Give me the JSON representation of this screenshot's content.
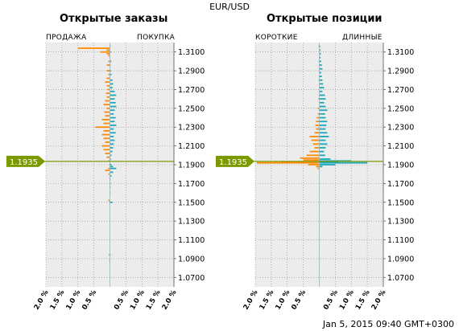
{
  "header": {
    "title": "EUR/USD"
  },
  "footer": {
    "timestamp": "Jan 5, 2015 09:40 GMT+0300"
  },
  "current_price": {
    "label": "1.1935",
    "value": 1.1935,
    "color": "#7a9a00"
  },
  "colors": {
    "sell": "#ff8a00",
    "buy": "#1aa9b9",
    "grid_bg": "#ececec"
  },
  "chart_data": [
    {
      "type": "bar",
      "orientation": "horizontal-diverging",
      "title": "Открытые заказы",
      "left_label": "ПРОДАЖА",
      "right_label": "ПОКУПКА",
      "ylim": [
        1.06,
        1.32
      ],
      "y_ticks": [
        "1.0700",
        "1.0900",
        "1.1100",
        "1.1300",
        "1.1500",
        "1.1700",
        "1.1900",
        "1.2100",
        "1.2300",
        "1.2500",
        "1.2700",
        "1.2900",
        "1.3100"
      ],
      "xlim": [
        -2.0,
        2.0
      ],
      "x_ticks": [
        "2.0 %",
        "1.5 %",
        "1.0 %",
        "0.5 %",
        "0.5 %",
        "1.0 %",
        "1.5 %",
        "2.0 %"
      ],
      "series": [
        {
          "name": "ПРОДАЖА",
          "color": "#ff8a00",
          "points": [
            [
              1.316,
              0.0
            ],
            [
              1.314,
              1.0
            ],
            [
              1.312,
              0.1
            ],
            [
              1.31,
              0.3
            ],
            [
              1.308,
              0.1
            ],
            [
              1.306,
              0.05
            ],
            [
              1.3,
              0.05
            ],
            [
              1.296,
              0.1
            ],
            [
              1.29,
              0.1
            ],
            [
              1.286,
              0.05
            ],
            [
              1.282,
              0.1
            ],
            [
              1.278,
              0.15
            ],
            [
              1.274,
              0.1
            ],
            [
              1.27,
              0.08
            ],
            [
              1.266,
              0.12
            ],
            [
              1.262,
              0.1
            ],
            [
              1.258,
              0.15
            ],
            [
              1.254,
              0.2
            ],
            [
              1.25,
              0.1
            ],
            [
              1.246,
              0.18
            ],
            [
              1.242,
              0.15
            ],
            [
              1.238,
              0.25
            ],
            [
              1.234,
              0.2
            ],
            [
              1.23,
              0.45
            ],
            [
              1.226,
              0.2
            ],
            [
              1.222,
              0.25
            ],
            [
              1.218,
              0.2
            ],
            [
              1.214,
              0.15
            ],
            [
              1.21,
              0.25
            ],
            [
              1.206,
              0.2
            ],
            [
              1.202,
              0.15
            ],
            [
              1.198,
              0.1
            ],
            [
              1.194,
              0.05
            ],
            [
              1.19,
              0.02
            ],
            [
              1.186,
              0.05
            ],
            [
              1.184,
              0.15
            ],
            [
              1.18,
              0.05
            ],
            [
              1.176,
              0.02
            ],
            [
              1.152,
              0.05
            ],
            [
              1.094,
              0.03
            ],
            [
              1.088,
              0.02
            ]
          ]
        },
        {
          "name": "ПОКУПКА",
          "color": "#1aa9b9",
          "points": [
            [
              1.316,
              0.02
            ],
            [
              1.31,
              0.03
            ],
            [
              1.3,
              0.04
            ],
            [
              1.296,
              0.02
            ],
            [
              1.29,
              0.03
            ],
            [
              1.286,
              0.05
            ],
            [
              1.28,
              0.08
            ],
            [
              1.276,
              0.1
            ],
            [
              1.272,
              0.08
            ],
            [
              1.268,
              0.15
            ],
            [
              1.264,
              0.2
            ],
            [
              1.26,
              0.15
            ],
            [
              1.256,
              0.18
            ],
            [
              1.252,
              0.2
            ],
            [
              1.248,
              0.15
            ],
            [
              1.244,
              0.12
            ],
            [
              1.24,
              0.18
            ],
            [
              1.236,
              0.15
            ],
            [
              1.232,
              0.2
            ],
            [
              1.228,
              0.12
            ],
            [
              1.224,
              0.18
            ],
            [
              1.22,
              0.12
            ],
            [
              1.216,
              0.15
            ],
            [
              1.212,
              0.12
            ],
            [
              1.208,
              0.1
            ],
            [
              1.204,
              0.08
            ],
            [
              1.2,
              0.05
            ],
            [
              1.196,
              0.03
            ],
            [
              1.19,
              0.05
            ],
            [
              1.188,
              0.1
            ],
            [
              1.186,
              0.2
            ],
            [
              1.182,
              0.1
            ],
            [
              1.178,
              0.05
            ],
            [
              1.174,
              0.02
            ],
            [
              1.17,
              0.02
            ],
            [
              1.166,
              0.02
            ],
            [
              1.16,
              0.02
            ],
            [
              1.15,
              0.08
            ],
            [
              1.094,
              0.02
            ]
          ]
        }
      ]
    },
    {
      "type": "bar",
      "orientation": "horizontal-diverging",
      "title": "Открытые позиции",
      "left_label": "КОРОТКИЕ",
      "right_label": "ДЛИННЫЕ",
      "ylim": [
        1.06,
        1.32
      ],
      "y_ticks": [
        "1.0700",
        "1.0900",
        "1.1100",
        "1.1300",
        "1.1500",
        "1.1700",
        "1.1900",
        "1.2100",
        "1.2300",
        "1.2500",
        "1.2700",
        "1.2900",
        "1.3100"
      ],
      "xlim": [
        -2.0,
        2.0
      ],
      "x_ticks": [
        "2.0 %",
        "1.5 %",
        "1.0 %",
        "0.5 %",
        "0.5 %",
        "1.0 %",
        "1.5 %",
        "2.0 %"
      ],
      "series": [
        {
          "name": "КОРОТКИЕ",
          "color": "#ff8a00",
          "points": [
            [
              1.316,
              0.02
            ],
            [
              1.3,
              0.02
            ],
            [
              1.28,
              0.02
            ],
            [
              1.26,
              0.03
            ],
            [
              1.25,
              0.05
            ],
            [
              1.244,
              0.05
            ],
            [
              1.24,
              0.08
            ],
            [
              1.236,
              0.1
            ],
            [
              1.232,
              0.12
            ],
            [
              1.228,
              0.1
            ],
            [
              1.224,
              0.15
            ],
            [
              1.22,
              0.3
            ],
            [
              1.216,
              0.25
            ],
            [
              1.212,
              0.2
            ],
            [
              1.208,
              0.15
            ],
            [
              1.204,
              0.3
            ],
            [
              1.2,
              0.4
            ],
            [
              1.197,
              0.6
            ],
            [
              1.195,
              0.5
            ],
            [
              1.193,
              1.2
            ],
            [
              1.192,
              1.95
            ],
            [
              1.19,
              0.35
            ],
            [
              1.188,
              0.1
            ],
            [
              1.186,
              0.05
            ]
          ]
        },
        {
          "name": "ДЛИННЫЕ",
          "color": "#1aa9b9",
          "points": [
            [
              1.316,
              0.03
            ],
            [
              1.312,
              0.04
            ],
            [
              1.308,
              0.05
            ],
            [
              1.304,
              0.04
            ],
            [
              1.3,
              0.06
            ],
            [
              1.296,
              0.08
            ],
            [
              1.292,
              0.1
            ],
            [
              1.288,
              0.06
            ],
            [
              1.284,
              0.08
            ],
            [
              1.28,
              0.1
            ],
            [
              1.276,
              0.12
            ],
            [
              1.272,
              0.15
            ],
            [
              1.268,
              0.1
            ],
            [
              1.264,
              0.18
            ],
            [
              1.26,
              0.2
            ],
            [
              1.256,
              0.15
            ],
            [
              1.252,
              0.2
            ],
            [
              1.248,
              0.25
            ],
            [
              1.244,
              0.18
            ],
            [
              1.24,
              0.2
            ],
            [
              1.236,
              0.25
            ],
            [
              1.232,
              0.22
            ],
            [
              1.228,
              0.2
            ],
            [
              1.224,
              0.25
            ],
            [
              1.22,
              0.3
            ],
            [
              1.216,
              0.2
            ],
            [
              1.212,
              0.25
            ],
            [
              1.208,
              0.2
            ],
            [
              1.204,
              0.15
            ],
            [
              1.2,
              0.18
            ],
            [
              1.196,
              0.35
            ],
            [
              1.194,
              1.0
            ],
            [
              1.193,
              0.6
            ],
            [
              1.192,
              1.5
            ],
            [
              1.19,
              0.5
            ],
            [
              1.188,
              0.1
            ]
          ]
        }
      ]
    }
  ]
}
